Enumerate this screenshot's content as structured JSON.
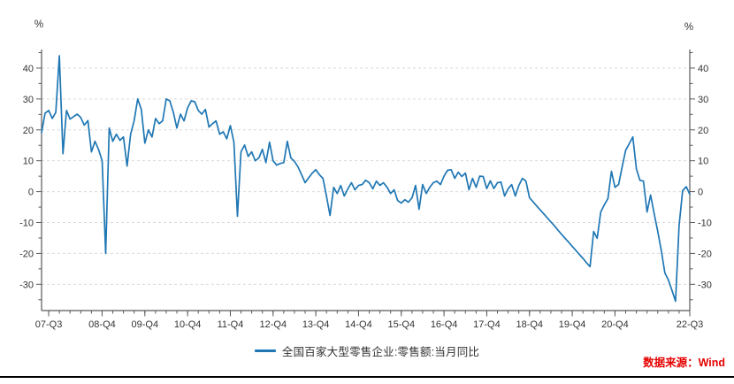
{
  "chart_data": {
    "type": "line",
    "title": "",
    "x_frequency": "monthly",
    "x_period_start": "2007-07",
    "x_period_end": "2022-09",
    "x_ticks": [
      {
        "label": "07-Q3",
        "index": 2
      },
      {
        "label": "08-Q4",
        "index": 17
      },
      {
        "label": "09-Q4",
        "index": 29
      },
      {
        "label": "10-Q4",
        "index": 41
      },
      {
        "label": "11-Q4",
        "index": 53
      },
      {
        "label": "12-Q4",
        "index": 65
      },
      {
        "label": "13-Q4",
        "index": 77
      },
      {
        "label": "14-Q4",
        "index": 89
      },
      {
        "label": "15-Q4",
        "index": 101
      },
      {
        "label": "16-Q4",
        "index": 113
      },
      {
        "label": "17-Q4",
        "index": 125
      },
      {
        "label": "18-Q4",
        "index": 137
      },
      {
        "label": "19-Q4",
        "index": 149
      },
      {
        "label": "20-Q4",
        "index": 161
      },
      {
        "label": "22-Q3",
        "index": 182
      }
    ],
    "x_minor_tick_step": 3,
    "y_axis": {
      "unit": "%",
      "min": -38.5,
      "max": 46,
      "major_tick_values": [
        -30,
        -20,
        -10,
        0,
        10,
        20,
        30,
        40
      ],
      "minor_tick_step": 5,
      "grid": "dashed-horizontal",
      "labels_on_both_sides": true
    },
    "legend_position": "bottom-center",
    "series": [
      {
        "name": "全国百家大型零售企业:零售额:当月同比",
        "color": "#1f77b4",
        "values": [
          19.1,
          25.4,
          26.3,
          23.7,
          25.7,
          44.0,
          12.3,
          26.3,
          23.5,
          24.3,
          25.1,
          24.0,
          21.5,
          23.0,
          12.9,
          16.3,
          13.7,
          10.0,
          -20.0,
          20.6,
          16.3,
          18.6,
          16.6,
          17.7,
          8.3,
          18.6,
          23.0,
          30.0,
          26.6,
          15.7,
          20.0,
          17.7,
          23.7,
          22.0,
          22.9,
          30.0,
          29.4,
          25.7,
          20.6,
          25.1,
          22.9,
          27.1,
          29.4,
          29.1,
          26.3,
          25.1,
          26.6,
          20.9,
          22.0,
          22.9,
          18.6,
          19.4,
          17.1,
          21.4,
          16.0,
          -8.0,
          12.9,
          15.1,
          11.4,
          12.9,
          10.0,
          10.9,
          13.7,
          9.4,
          16.0,
          10.0,
          8.6,
          9.1,
          9.4,
          16.3,
          10.9,
          9.8,
          8.0,
          5.5,
          2.9,
          4.5,
          6.0,
          7.1,
          5.5,
          4.3,
          -1.5,
          -7.7,
          1.4,
          -0.6,
          2.0,
          -1.4,
          0.9,
          2.9,
          0.6,
          2.0,
          2.3,
          3.7,
          2.9,
          0.9,
          3.4,
          2.0,
          2.9,
          1.4,
          -0.6,
          0.6,
          -2.9,
          -3.7,
          -2.6,
          -3.4,
          -2.0,
          2.0,
          -5.7,
          2.3,
          -0.6,
          1.4,
          2.9,
          3.4,
          2.3,
          5.0,
          6.9,
          7.1,
          4.3,
          6.3,
          4.9,
          6.0,
          0.6,
          4.3,
          1.4,
          5.0,
          4.9,
          1.0,
          3.5,
          1.0,
          2.9,
          3.1,
          -1.4,
          0.9,
          2.3,
          -1.4,
          2.0,
          4.3,
          3.4,
          -2.0,
          -3.3,
          -4.6,
          -5.9,
          -7.2,
          -8.5,
          -9.8,
          -11.1,
          -12.5,
          -13.8,
          -15.1,
          -16.4,
          -17.7,
          -19.0,
          -20.3,
          -21.6,
          -23.0,
          -24.3,
          -12.9,
          -15.1,
          -6.6,
          -4.3,
          -2.3,
          6.6,
          1.4,
          2.3,
          8.0,
          13.4,
          15.5,
          17.7,
          7.4,
          3.7,
          3.4,
          -6.6,
          -1.1,
          -7.1,
          -12.9,
          -19.1,
          -26.3,
          -28.6,
          -32.0,
          -35.5,
          -11.0,
          0.3,
          1.6,
          -0.9
        ]
      }
    ]
  },
  "legend": {
    "label": "全国百家大型零售企业:零售额:当月同比"
  },
  "source_note": {
    "text": "数据来源：Wind",
    "color": "#e60000"
  },
  "colors": {
    "line": "#1f77b4",
    "grid": "#d9d9d9",
    "axis": "#595959",
    "tick_text": "#333333",
    "source_red": "#e60000",
    "divider": "#000000"
  }
}
